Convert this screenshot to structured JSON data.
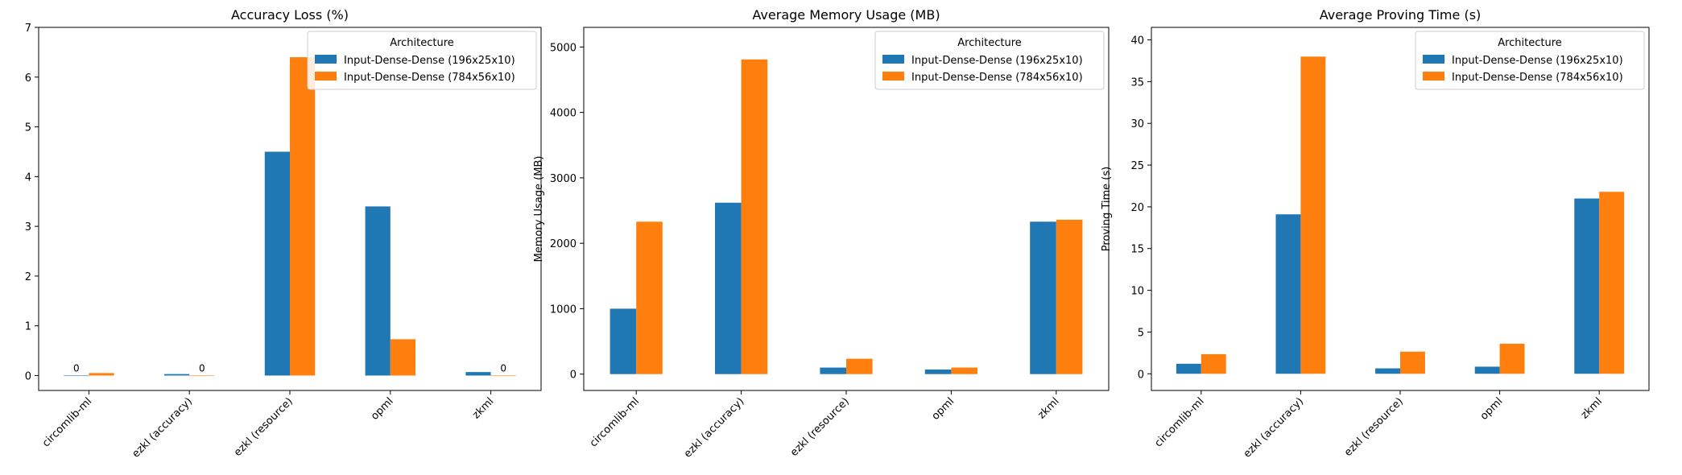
{
  "colors": {
    "series_a": "#1f77b4",
    "series_b": "#ff7f0e"
  },
  "chart_data": [
    {
      "type": "bar",
      "title": "Accuracy Loss (%)",
      "xlabel": "",
      "ylabel": "Accuracy Loss (%)",
      "ylim": [
        -0.3,
        7.0
      ],
      "yticks": [
        0,
        1,
        2,
        3,
        4,
        5,
        6,
        7
      ],
      "categories": [
        "circomlib-ml",
        "ezkl (accuracy)",
        "ezkl (resource)",
        "opml",
        "zkml"
      ],
      "legend_title": "Architecture",
      "legend_position": "top-right",
      "grid": false,
      "series": [
        {
          "name": "Input-Dense-Dense (196x25x10)",
          "values": [
            0.0,
            0.03,
            4.5,
            3.4,
            0.07
          ]
        },
        {
          "name": "Input-Dense-Dense (784x56x10)",
          "values": [
            0.05,
            0.0,
            6.4,
            0.73,
            0.0
          ]
        }
      ],
      "annotations": [
        {
          "category": "circomlib-ml",
          "series": 0,
          "text": "0"
        },
        {
          "category": "ezkl (accuracy)",
          "series": 1,
          "text": "0"
        },
        {
          "category": "zkml",
          "series": 1,
          "text": "0"
        }
      ]
    },
    {
      "type": "bar",
      "title": "Average Memory Usage (MB)",
      "xlabel": "",
      "ylabel": "Memory Usage (MB)",
      "ylim": [
        -250,
        5300
      ],
      "yticks": [
        0,
        1000,
        2000,
        3000,
        4000,
        5000
      ],
      "categories": [
        "circomlib-ml",
        "ezkl (accuracy)",
        "ezkl (resource)",
        "opml",
        "zkml"
      ],
      "legend_title": "Architecture",
      "legend_position": "top-right",
      "grid": false,
      "series": [
        {
          "name": "Input-Dense-Dense (196x25x10)",
          "values": [
            1000,
            2620,
            100,
            70,
            2330
          ]
        },
        {
          "name": "Input-Dense-Dense (784x56x10)",
          "values": [
            2330,
            4810,
            235,
            100,
            2360
          ]
        }
      ],
      "annotations": []
    },
    {
      "type": "bar",
      "title": "Average Proving Time (s)",
      "xlabel": "",
      "ylabel": "Proving Time (s)",
      "ylim": [
        -2,
        41.5
      ],
      "yticks": [
        0,
        5,
        10,
        15,
        20,
        25,
        30,
        35,
        40
      ],
      "categories": [
        "circomlib-ml",
        "ezkl (accuracy)",
        "ezkl (resource)",
        "opml",
        "zkml"
      ],
      "legend_title": "Architecture",
      "legend_position": "top-right",
      "grid": false,
      "series": [
        {
          "name": "Input-Dense-Dense (196x25x10)",
          "values": [
            1.2,
            19.1,
            0.65,
            0.85,
            21.0
          ]
        },
        {
          "name": "Input-Dense-Dense (784x56x10)",
          "values": [
            2.35,
            38.0,
            2.65,
            3.6,
            21.8
          ]
        }
      ],
      "annotations": []
    }
  ]
}
